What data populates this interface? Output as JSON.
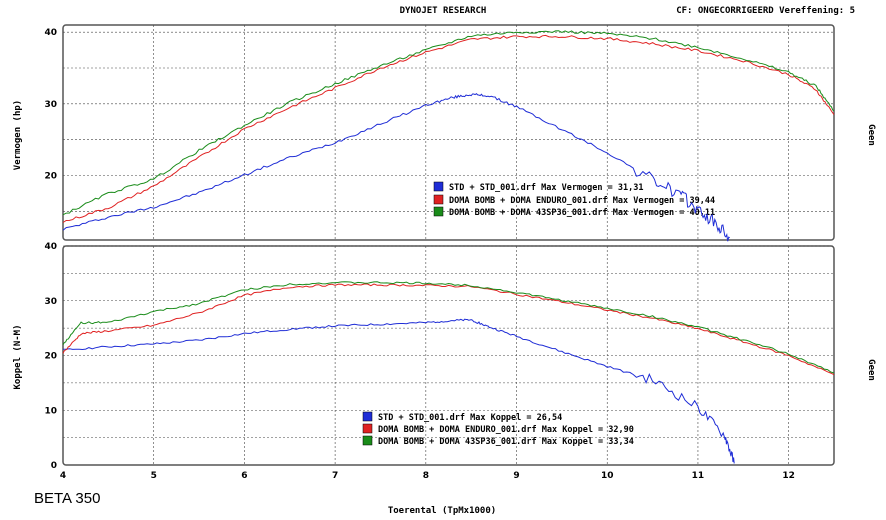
{
  "header": {
    "center": "DYNOJET RESEARCH",
    "right": "CF: ONGECORRIGEERD  Vereffening: 5"
  },
  "caption": "BETA 350",
  "colors": {
    "blue": "#1f2dd6",
    "red": "#e02222",
    "green": "#1a8c1a",
    "panel_border": "#555555",
    "grid": "#444444"
  },
  "chart_data": [
    {
      "type": "line",
      "ylabel": "Vermogen (hp)",
      "right_label": "Geen",
      "xlim": [
        4,
        12.5
      ],
      "ylim": [
        11,
        41
      ],
      "yticks": [
        20,
        30,
        40
      ],
      "xticks": [
        4,
        5,
        6,
        7,
        8,
        9,
        10,
        11,
        12
      ],
      "legend": [
        "STD + STD_001.drf Max Vermogen = 31,31",
        "DOMA BOMB + DOMA ENDURO_001.drf Max Vermogen = 39,44",
        "DOMA BOMB + DOMA 43SP36_001.drf Max Vermogen = 40,11"
      ],
      "series": [
        {
          "color": "blue",
          "x": [
            4.0,
            4.5,
            5.0,
            5.5,
            6.0,
            6.5,
            7.0,
            7.5,
            8.0,
            8.3,
            8.5,
            8.7,
            9.0,
            9.5,
            10.0,
            10.5,
            10.8,
            11.0,
            11.2,
            11.35
          ],
          "y": [
            12.5,
            14.2,
            15.6,
            17.6,
            20.1,
            22.5,
            24.6,
            27.2,
            29.8,
            30.9,
            31.3,
            31.1,
            29.6,
            26.4,
            23.2,
            19.4,
            17.3,
            15.2,
            13.2,
            11.3
          ]
        },
        {
          "color": "red",
          "x": [
            4.0,
            4.5,
            5.0,
            5.5,
            6.0,
            6.5,
            7.0,
            7.5,
            8.0,
            8.5,
            9.0,
            9.5,
            10.0,
            10.5,
            11.0,
            11.5,
            12.0,
            12.3,
            12.5
          ],
          "y": [
            13.5,
            15.5,
            18.5,
            22.5,
            26.5,
            29.5,
            32.2,
            35.0,
            37.2,
            39.0,
            39.4,
            39.4,
            39.1,
            38.4,
            37.4,
            36.0,
            34.1,
            32.0,
            28.5
          ]
        },
        {
          "color": "green",
          "x": [
            4.0,
            4.5,
            5.0,
            5.5,
            6.0,
            6.5,
            7.0,
            7.5,
            8.0,
            8.5,
            9.0,
            9.5,
            10.0,
            10.5,
            11.0,
            11.5,
            12.0,
            12.3,
            12.5
          ],
          "y": [
            14.5,
            17.5,
            19.5,
            23.5,
            27.0,
            30.2,
            32.8,
            35.3,
            37.5,
            39.5,
            40.0,
            40.1,
            39.8,
            39.1,
            37.9,
            36.3,
            34.4,
            32.5,
            29.0
          ]
        }
      ]
    },
    {
      "type": "line",
      "ylabel": "Koppel (N-M)",
      "right_label": "Geen",
      "xlabel": "Toerental (TpMx1000)",
      "xlim": [
        4,
        12.5
      ],
      "ylim": [
        0,
        40
      ],
      "yticks": [
        0,
        10,
        20,
        30,
        40
      ],
      "xticks": [
        4,
        5,
        6,
        7,
        8,
        9,
        10,
        11,
        12
      ],
      "legend": [
        "STD + STD_001.drf Max Koppel = 26,54",
        "DOMA BOMB + DOMA ENDURO_001.drf Max Koppel = 32,90",
        "DOMA BOMB + DOMA 43SP36_001.drf Max Koppel = 33,34"
      ],
      "series": [
        {
          "color": "blue",
          "x": [
            4.0,
            4.5,
            5.0,
            5.5,
            6.0,
            6.5,
            7.0,
            7.5,
            8.0,
            8.3,
            8.5,
            8.7,
            9.0,
            9.5,
            10.0,
            10.5,
            11.0,
            11.3,
            11.4
          ],
          "y": [
            21.0,
            21.6,
            22.1,
            22.8,
            24.0,
            24.8,
            25.4,
            25.7,
            26.0,
            26.4,
            26.5,
            25.2,
            23.5,
            20.7,
            18.0,
            15.5,
            10.5,
            5.2,
            0.3
          ]
        },
        {
          "color": "red",
          "x": [
            4.0,
            4.2,
            4.5,
            5.0,
            5.5,
            6.0,
            6.5,
            7.0,
            7.5,
            8.0,
            8.5,
            9.0,
            9.5,
            10.0,
            10.5,
            11.0,
            11.5,
            12.0,
            12.5
          ],
          "y": [
            20.5,
            24.0,
            24.5,
            25.5,
            27.8,
            31.0,
            32.5,
            32.9,
            32.9,
            32.8,
            32.6,
            31.2,
            29.8,
            28.3,
            26.8,
            24.9,
            22.5,
            20.0,
            16.5
          ]
        },
        {
          "color": "green",
          "x": [
            4.0,
            4.2,
            4.5,
            5.0,
            5.5,
            6.0,
            6.5,
            7.0,
            7.5,
            8.0,
            8.5,
            9.0,
            9.5,
            10.0,
            10.5,
            11.0,
            11.5,
            12.0,
            12.5
          ],
          "y": [
            22.0,
            26.0,
            26.0,
            28.0,
            29.5,
            32.0,
            33.0,
            33.3,
            33.3,
            33.2,
            32.8,
            31.5,
            30.1,
            28.6,
            27.1,
            25.2,
            22.8,
            20.3,
            16.8
          ]
        }
      ]
    }
  ]
}
